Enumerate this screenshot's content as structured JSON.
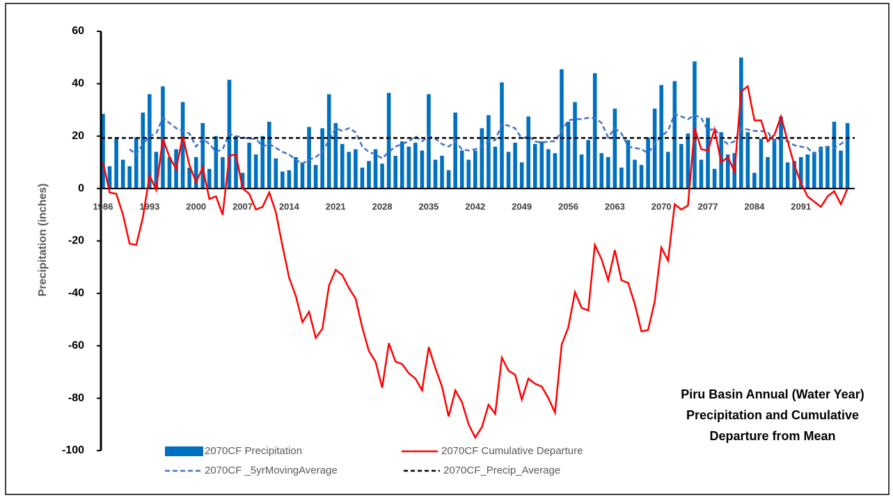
{
  "chart_data": {
    "type": "combo",
    "title": "Piru Basin Annual (Water Year) Precipitation and Cumulative Departure from Mean",
    "y_label": "Precipitation (inches)",
    "categories": [
      "1986",
      null,
      null,
      null,
      null,
      null,
      null,
      "1993",
      null,
      null,
      null,
      null,
      null,
      null,
      "2000",
      null,
      null,
      null,
      null,
      null,
      null,
      "2007",
      null,
      null,
      null,
      null,
      null,
      null,
      "2014",
      null,
      null,
      null,
      null,
      null,
      null,
      "2021",
      null,
      null,
      null,
      null,
      null,
      null,
      "2028",
      null,
      null,
      null,
      null,
      null,
      null,
      "2035",
      null,
      null,
      null,
      null,
      null,
      null,
      "2042",
      null,
      null,
      null,
      null,
      null,
      null,
      "2049",
      null,
      null,
      null,
      null,
      null,
      null,
      "2056",
      null,
      null,
      null,
      null,
      null,
      null,
      "2063",
      null,
      null,
      null,
      null,
      null,
      null,
      "2070",
      null,
      null,
      null,
      null,
      null,
      null,
      "2077",
      null,
      null,
      null,
      null,
      null,
      null,
      "2084",
      null,
      null,
      null,
      null,
      null,
      null,
      "2091",
      null,
      null,
      null,
      null,
      null,
      null,
      null
    ],
    "ylim": [
      -100,
      60
    ],
    "yticks": [
      -100,
      -80,
      -60,
      -40,
      -20,
      0,
      20,
      40,
      60
    ],
    "series": [
      {
        "name": "2070CF Precipitation",
        "type": "bar",
        "color": "#0070c0",
        "values": [
          28.5,
          8.5,
          19,
          11,
          8.5,
          19.5,
          29,
          36,
          14,
          39,
          12,
          15,
          33,
          8,
          12,
          25,
          7.5,
          20,
          12,
          41.5,
          20,
          6,
          17.5,
          13,
          20,
          25.5,
          11.5,
          6.5,
          7,
          12,
          10,
          23.5,
          9,
          23,
          36,
          25,
          17,
          14,
          15,
          8,
          10.5,
          15,
          9.5,
          36.5,
          12.5,
          18,
          16,
          17.5,
          14.5,
          36,
          11,
          12.5,
          7,
          29,
          14.5,
          11,
          14.5,
          23,
          28,
          16,
          40.5,
          14,
          17.5,
          10,
          27.5,
          17,
          18,
          15,
          13.5,
          45.5,
          25.5,
          33,
          13,
          18.5,
          44,
          13.5,
          12,
          30.5,
          8,
          18.5,
          11,
          9,
          19.5,
          30.5,
          39.5,
          14,
          41,
          17,
          21,
          48.5,
          11,
          27,
          7.5,
          21.5,
          13,
          13.5,
          50,
          21.5,
          6,
          19,
          12,
          19,
          27.5,
          10,
          10.5,
          12,
          13,
          14,
          16,
          16,
          25.5,
          14.5,
          25
        ]
      },
      {
        "name": "2070CF _5yrMovingAverage",
        "type": "line",
        "dash": "7,4",
        "color": "#4472c4",
        "values": [
          null,
          null,
          null,
          null,
          15,
          13,
          17,
          20,
          21,
          27,
          25,
          23,
          22,
          21,
          16,
          19,
          17,
          14,
          15,
          21,
          20,
          19.5,
          19,
          19,
          16,
          17,
          15.5,
          14,
          13,
          11,
          9.5,
          11,
          12,
          14,
          18.5,
          23,
          22,
          23,
          21.5,
          16,
          14,
          13,
          11.5,
          14,
          16,
          17,
          18,
          20,
          18,
          20,
          19,
          17,
          16,
          18,
          15,
          14.5,
          15,
          16,
          18,
          18.5,
          24.5,
          24,
          23,
          19,
          20,
          18,
          17.5,
          18,
          18,
          22,
          26,
          26.5,
          26.5,
          27,
          27,
          25,
          19.5,
          23,
          21,
          16,
          15.5,
          15,
          13.5,
          17,
          20,
          22,
          28.5,
          27.5,
          26.5,
          28,
          27,
          22,
          23,
          19,
          17,
          18,
          23,
          22.5,
          22,
          22,
          21.5,
          18,
          19,
          18,
          16.5,
          16,
          15.5,
          13,
          15,
          16,
          15.5,
          17,
          19
        ]
      },
      {
        "name": "2070CF_Precip_Average",
        "type": "hline",
        "dash": "6,4",
        "color": "#000000",
        "value": 19.3
      },
      {
        "name": "2070CF Cumulative Departure",
        "type": "line",
        "color": "#ff0000",
        "values": [
          10,
          -1.5,
          -2,
          -10,
          -21,
          -21.5,
          -11,
          5,
          -0.5,
          19,
          12,
          7.5,
          20,
          9,
          2.5,
          8,
          -4,
          -3,
          -10,
          12.5,
          13,
          0,
          -2,
          -8,
          -7,
          -1.5,
          -9,
          -22,
          -34,
          -41,
          -51,
          -47,
          -57,
          -53.5,
          -37,
          -31,
          -33,
          -38,
          -42,
          -53,
          -62,
          -66,
          -76,
          -59,
          -66,
          -67,
          -70.5,
          -72.5,
          -77,
          -60.5,
          -68.5,
          -75.5,
          -87,
          -77,
          -81.5,
          -90,
          -95,
          -91,
          -82.5,
          -86,
          -64.5,
          -69.5,
          -71,
          -80.5,
          -72.5,
          -74.5,
          -75.5,
          -80,
          -85.5,
          -59.5,
          -53,
          -39.5,
          -45.5,
          -46.5,
          -21.5,
          -27,
          -35,
          -23.5,
          -35,
          -36,
          -44,
          -54.5,
          -54,
          -43,
          -22.5,
          -27.5,
          -6,
          -8,
          -6.5,
          23,
          15,
          14.5,
          22.5,
          10,
          12,
          6.5,
          37,
          39,
          26,
          26,
          18,
          20.5,
          27.5,
          18,
          9,
          2,
          -3,
          -5,
          -7,
          -3,
          -1,
          -6,
          0
        ]
      }
    ]
  }
}
